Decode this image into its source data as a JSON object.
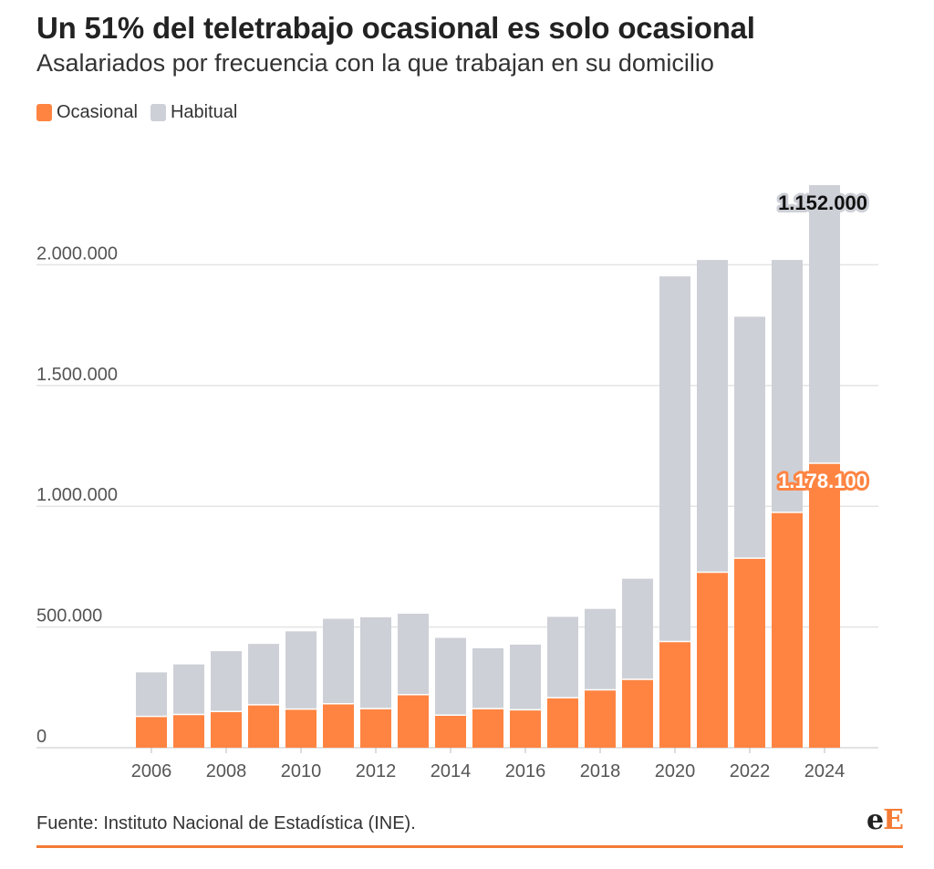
{
  "header": {
    "title": "Un 51% del teletrabajo ocasional es solo ocasional",
    "subtitle": "Asalariados por frecuencia con la que trabajan en su domicilio"
  },
  "footer": {
    "source": "Fuente: Instituto Nacional de Estadística (INE).",
    "logo_e": "e",
    "logo_E": "E"
  },
  "colors": {
    "ocasional": "#ff8442",
    "habitual": "#cdd0d6",
    "accent": "#f47b34",
    "grid": "#e4e4e4"
  },
  "chart_data": {
    "type": "bar",
    "stacked": true,
    "x": [
      2006,
      2007,
      2008,
      2009,
      2010,
      2011,
      2012,
      2013,
      2014,
      2015,
      2016,
      2017,
      2018,
      2019,
      2020,
      2021,
      2022,
      2023,
      2024
    ],
    "series": [
      {
        "name": "Ocasional",
        "color": "#ff8442",
        "values": [
          130000,
          138000,
          150000,
          178000,
          160000,
          182000,
          162000,
          220000,
          135000,
          162000,
          157000,
          207000,
          240000,
          283000,
          440000,
          727000,
          785000,
          975000,
          1178100
        ]
      },
      {
        "name": "Habitual",
        "color": "#cdd0d6",
        "values": [
          182000,
          207000,
          250000,
          252000,
          322000,
          352000,
          378000,
          335000,
          320000,
          250000,
          270000,
          335000,
          335000,
          417000,
          1512000,
          1293000,
          1000000,
          1045000,
          1152000
        ]
      }
    ],
    "yticks": [
      0,
      500000,
      1000000,
      1500000,
      2000000
    ],
    "ytick_labels": [
      "0",
      "500.000",
      "1.000.000",
      "1.500.000",
      "2.000.000"
    ],
    "xtick_labels": [
      "2006",
      "2008",
      "2010",
      "2012",
      "2014",
      "2016",
      "2018",
      "2020",
      "2022",
      "2024"
    ],
    "ylim": [
      0,
      2330000
    ],
    "annotations": {
      "habitual_last": "1.152.000",
      "ocasional_last": "1.178.100"
    },
    "grid": true,
    "legend": "top-left"
  }
}
